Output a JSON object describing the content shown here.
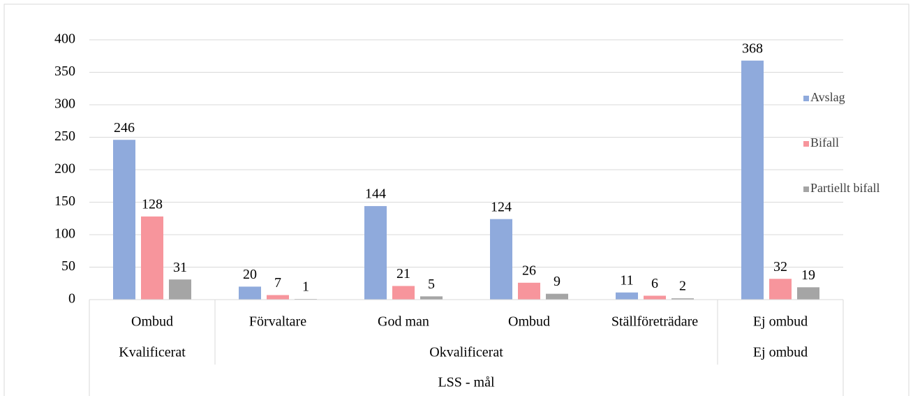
{
  "chart_data": {
    "type": "bar",
    "group_title": "LSS - mål",
    "groups": [
      {
        "label": "Kvalificerat",
        "categories": [
          "Ombud"
        ]
      },
      {
        "label": "Okvalificerat",
        "categories": [
          "Förvaltare",
          "God man",
          "Ombud",
          "Ställföreträdare"
        ]
      },
      {
        "label": "Ej ombud",
        "categories": [
          "Ej ombud"
        ]
      }
    ],
    "series": [
      {
        "name": "Avslag",
        "color": "#8faadc",
        "values": [
          246,
          20,
          144,
          124,
          11,
          368
        ]
      },
      {
        "name": "Bifall",
        "color": "#f7959c",
        "values": [
          128,
          7,
          21,
          26,
          6,
          32
        ]
      },
      {
        "name": "Partiellt bifall",
        "color": "#a5a5a5",
        "values": [
          31,
          1,
          5,
          9,
          2,
          19
        ]
      }
    ],
    "ylim": [
      0,
      400
    ],
    "yticks": [
      0,
      50,
      100,
      150,
      200,
      250,
      300,
      350,
      400
    ],
    "grid": true,
    "legend": "right"
  }
}
